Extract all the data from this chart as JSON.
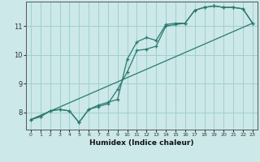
{
  "title": "",
  "xlabel": "Humidex (Indice chaleur)",
  "ylabel": "",
  "xlim": [
    -0.5,
    23.5
  ],
  "ylim": [
    7.4,
    11.85
  ],
  "xticks": [
    0,
    1,
    2,
    3,
    4,
    5,
    6,
    7,
    8,
    9,
    10,
    11,
    12,
    13,
    14,
    15,
    16,
    17,
    18,
    19,
    20,
    21,
    22,
    23
  ],
  "yticks": [
    8,
    9,
    10,
    11
  ],
  "background_color": "#cce8e8",
  "grid_color": "#99cccc",
  "line_color": "#2a7a6e",
  "line1_x": [
    0,
    1,
    2,
    3,
    4,
    5,
    6,
    7,
    8,
    9,
    10,
    11,
    12,
    13,
    14,
    15,
    16,
    17,
    18,
    19,
    20,
    21,
    22,
    23
  ],
  "line1_y": [
    7.75,
    7.85,
    8.05,
    8.1,
    8.05,
    7.65,
    8.1,
    8.25,
    8.35,
    8.45,
    9.85,
    10.45,
    10.6,
    10.5,
    11.05,
    11.1,
    11.1,
    11.55,
    11.65,
    11.7,
    11.65,
    11.65,
    11.6,
    11.1
  ],
  "line2_x": [
    0,
    1,
    2,
    3,
    4,
    5,
    6,
    7,
    8,
    9,
    10,
    11,
    12,
    13,
    14,
    15,
    16,
    17,
    18,
    19,
    20,
    21,
    22,
    23
  ],
  "line2_y": [
    7.75,
    7.85,
    8.05,
    8.1,
    8.05,
    7.65,
    8.1,
    8.2,
    8.3,
    8.8,
    9.4,
    10.15,
    10.2,
    10.3,
    11.0,
    11.05,
    11.1,
    11.55,
    11.65,
    11.7,
    11.65,
    11.65,
    11.6,
    11.1
  ],
  "line3_x": [
    0,
    23
  ],
  "line3_y": [
    7.75,
    11.1
  ],
  "xlabel_fontsize": 6.5,
  "xlabel_fontweight": "bold",
  "xtick_fontsize": 4.5,
  "ytick_fontsize": 6.0,
  "line_width": 0.9,
  "marker_size": 3.0
}
